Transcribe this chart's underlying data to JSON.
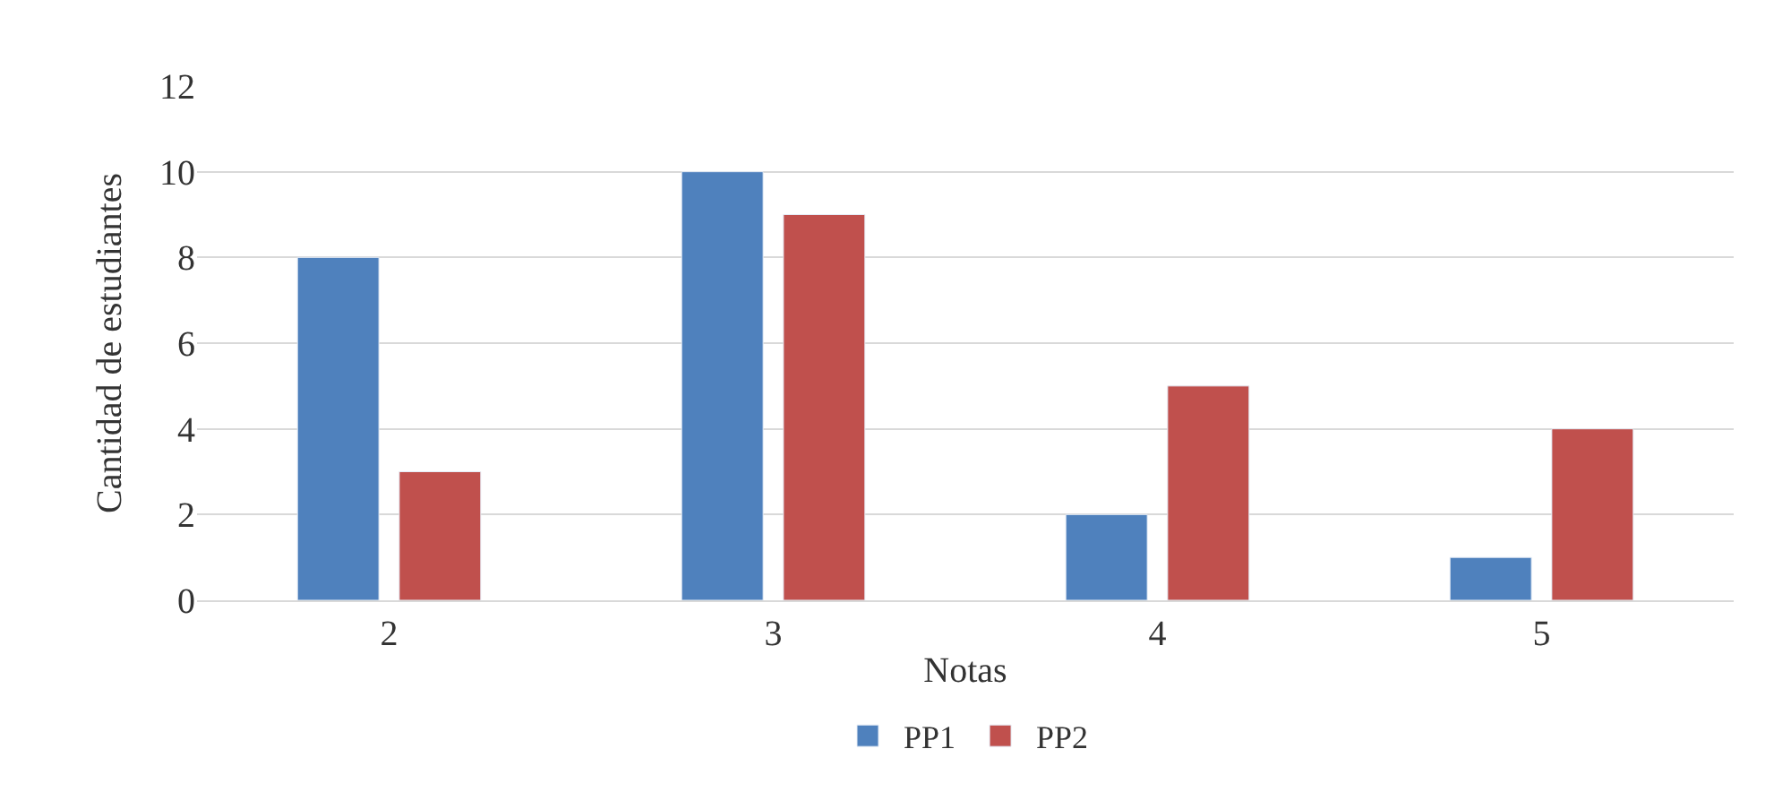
{
  "chart_data": {
    "type": "bar",
    "xlabel": "Notas",
    "ylabel": "Cantidad de estudiantes",
    "categories": [
      "2",
      "3",
      "4",
      "5"
    ],
    "series": [
      {
        "name": "PP1",
        "color": "#4f81bd",
        "values": [
          8,
          10,
          2,
          1
        ]
      },
      {
        "name": "PP2",
        "color": "#c0504d",
        "values": [
          3,
          9,
          5,
          4
        ]
      }
    ],
    "ylim": [
      0,
      12
    ],
    "yticks": [
      0,
      2,
      4,
      6,
      8,
      10,
      12
    ],
    "grid": "y",
    "legend": "bottom"
  }
}
